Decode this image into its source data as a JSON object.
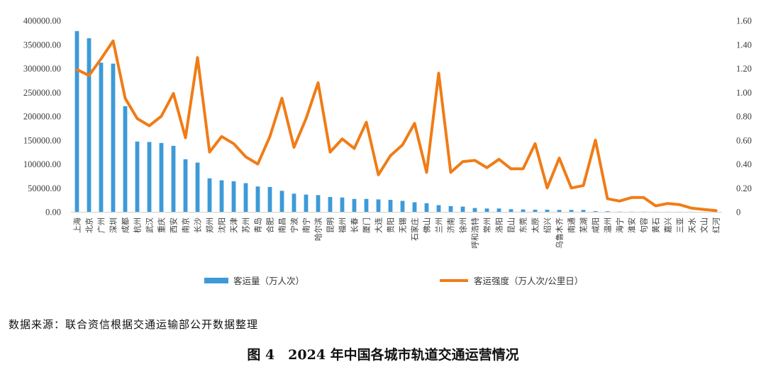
{
  "source_text": "数据来源：联合资信根据交通运输部公开数据整理",
  "caption": "图 4　2024 年中国各城市轨道交通运营情况",
  "chart_data": {
    "type": "bar",
    "title": "",
    "xlabel": "",
    "ylabel": "",
    "categories": [
      "上海",
      "北京",
      "广州",
      "深圳",
      "成都",
      "杭州",
      "武汉",
      "重庆",
      "西安",
      "南京",
      "长沙",
      "郑州",
      "沈阳",
      "天津",
      "苏州",
      "青岛",
      "合肥",
      "南昌",
      "宁波",
      "南宁",
      "哈尔滨",
      "昆明",
      "福州",
      "长春",
      "厦门",
      "大连",
      "贵阳",
      "无锡",
      "石家庄",
      "佛山",
      "兰州",
      "济南",
      "徐州",
      "呼和浩特",
      "常州",
      "洛阳",
      "昆山",
      "东莞",
      "太原",
      "绍兴",
      "乌鲁木齐",
      "南通",
      "芜湖",
      "咸阳",
      "温州",
      "海宁",
      "淮安",
      "句容",
      "黄石",
      "嘉兴",
      "三亚",
      "天水",
      "文山",
      "红河"
    ],
    "ylim": [
      0,
      400000
    ],
    "y_ticks": [
      "0.00",
      "50000.00",
      "100000.00",
      "150000.00",
      "200000.00",
      "250000.00",
      "300000.00",
      "350000.00",
      "400000.00"
    ],
    "y2lim": [
      0,
      1.6
    ],
    "y2_ticks": [
      "0",
      "0.20",
      "0.40",
      "0.60",
      "0.80",
      "1.00",
      "1.20",
      "1.40",
      "1.60"
    ],
    "legend_position": "bottom",
    "grid": false,
    "series": [
      {
        "name": "客运量（万人次）",
        "type": "bar",
        "axis": "left",
        "color": "#3d9ad8",
        "values": [
          378000,
          363000,
          312000,
          310000,
          221000,
          147000,
          146000,
          144000,
          138000,
          110000,
          103000,
          70000,
          66000,
          64000,
          60000,
          53000,
          52000,
          44000,
          38000,
          36000,
          35000,
          31000,
          30000,
          27000,
          27000,
          26000,
          25000,
          23000,
          20000,
          18000,
          14000,
          12000,
          11000,
          8000,
          7000,
          7000,
          5500,
          5000,
          4500,
          4500,
          4000,
          4000,
          4000,
          1500,
          1200,
          400,
          300,
          250,
          200,
          150,
          150,
          100,
          100,
          100
        ]
      },
      {
        "name": "客运强度（万人次/公里日）",
        "type": "line",
        "axis": "right",
        "color": "#f07c16",
        "values": [
          1.19,
          1.14,
          1.28,
          1.43,
          0.95,
          0.78,
          0.72,
          0.8,
          0.99,
          0.62,
          1.29,
          0.5,
          0.63,
          0.57,
          0.46,
          0.4,
          0.63,
          0.95,
          0.54,
          0.78,
          1.08,
          0.5,
          0.61,
          0.53,
          0.75,
          0.31,
          0.47,
          0.56,
          0.74,
          0.33,
          1.16,
          0.33,
          0.42,
          0.43,
          0.37,
          0.44,
          0.36,
          0.36,
          0.57,
          0.2,
          0.45,
          0.2,
          0.22,
          0.6,
          0.11,
          0.09,
          0.12,
          0.12,
          0.05,
          0.07,
          0.06,
          0.03,
          0.02,
          0.01
        ]
      }
    ]
  }
}
